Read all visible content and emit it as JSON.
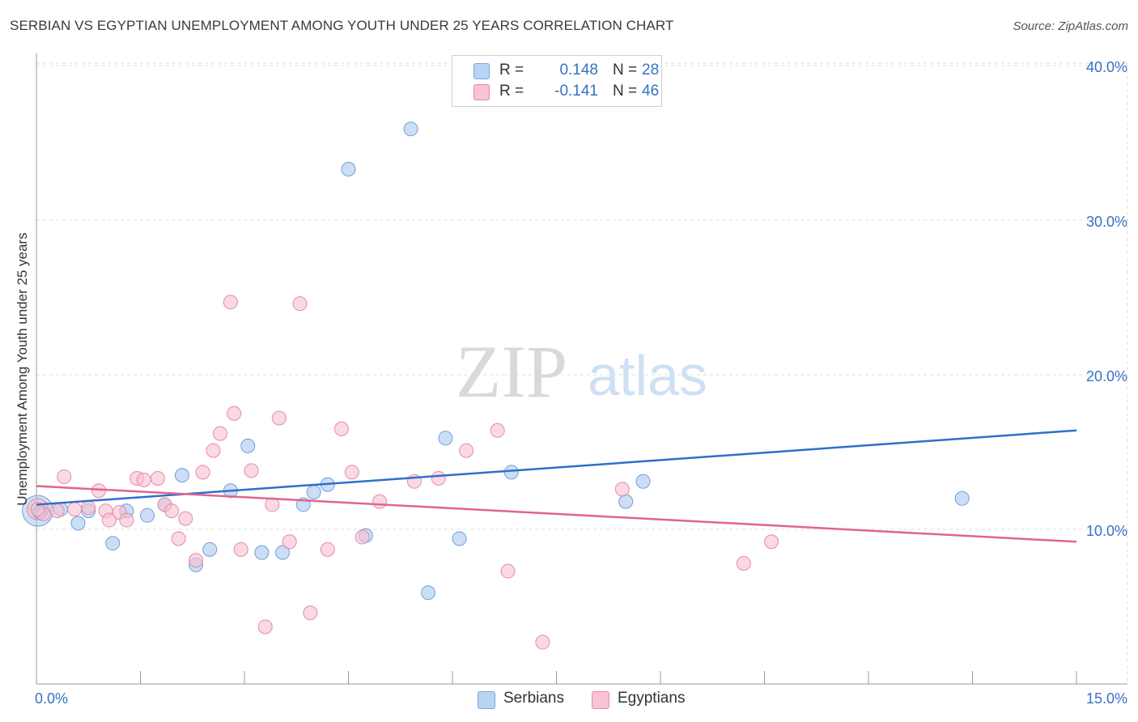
{
  "header": {
    "title": "SERBIAN VS EGYPTIAN UNEMPLOYMENT AMONG YOUTH UNDER 25 YEARS CORRELATION CHART",
    "source": "Source: ZipAtlas.com"
  },
  "watermark": {
    "zip": "ZIP",
    "atlas": "atlas"
  },
  "legend": {
    "r_label": "R =",
    "n_label": "N =",
    "rows": [
      {
        "name": "Serbians",
        "r": "0.148",
        "n": "28",
        "fill": "#b9d3f3",
        "stroke": "#7aa7df"
      },
      {
        "name": "Egyptians",
        "r": "-0.141",
        "n": "46",
        "fill": "#f8c3d3",
        "stroke": "#e98aa8"
      }
    ]
  },
  "colors": {
    "serbian_point": "#a9c8ef",
    "serbian_stroke": "#6f9fdc",
    "serbian_line": "#2f6fcd",
    "egyptian_point": "#f6bfd0",
    "egyptian_stroke": "#e58aa8",
    "egyptian_line": "#e2648e",
    "tick_label": "#3572c6",
    "grid": "#dddddd"
  },
  "chart_data": {
    "type": "scatter",
    "title": "SERBIAN VS EGYPTIAN UNEMPLOYMENT AMONG YOUTH UNDER 25 YEARS CORRELATION CHART",
    "xlabel": "",
    "ylabel": "Unemployment Among Youth under 25 years",
    "xlim": [
      0,
      15
    ],
    "ylim": [
      0,
      40
    ],
    "x_tick_labels": [
      "0.0%",
      "15.0%"
    ],
    "y_ticks": [
      10,
      20,
      30,
      40
    ],
    "y_tick_labels": [
      "10.0%",
      "20.0%",
      "30.0%",
      "40.0%"
    ],
    "series": [
      {
        "name": "Serbians",
        "trend": [
          [
            0.0,
            11.6
          ],
          [
            15.0,
            16.4
          ]
        ],
        "points": [
          [
            0.05,
            11.1
          ],
          [
            0.6,
            10.4
          ],
          [
            0.75,
            11.2
          ],
          [
            1.1,
            9.1
          ],
          [
            1.3,
            11.2
          ],
          [
            1.6,
            10.9
          ],
          [
            1.85,
            11.6
          ],
          [
            2.1,
            13.5
          ],
          [
            2.3,
            7.7
          ],
          [
            2.5,
            8.7
          ],
          [
            2.8,
            12.5
          ],
          [
            3.05,
            15.4
          ],
          [
            3.25,
            8.5
          ],
          [
            3.55,
            8.5
          ],
          [
            3.85,
            11.6
          ],
          [
            4.0,
            12.4
          ],
          [
            4.2,
            12.9
          ],
          [
            4.5,
            33.3
          ],
          [
            4.75,
            9.6
          ],
          [
            5.4,
            35.9
          ],
          [
            5.65,
            5.9
          ],
          [
            5.9,
            15.9
          ],
          [
            6.1,
            9.4
          ],
          [
            6.85,
            13.7
          ],
          [
            8.5,
            11.8
          ],
          [
            8.75,
            13.1
          ],
          [
            13.35,
            12.0
          ],
          [
            0.35,
            11.3
          ]
        ]
      },
      {
        "name": "Egyptians",
        "trend": [
          [
            0.0,
            12.8
          ],
          [
            15.0,
            9.2
          ]
        ],
        "points": [
          [
            0.1,
            11.0
          ],
          [
            0.3,
            11.2
          ],
          [
            0.4,
            13.4
          ],
          [
            0.55,
            11.3
          ],
          [
            0.75,
            11.4
          ],
          [
            0.9,
            12.5
          ],
          [
            1.0,
            11.2
          ],
          [
            1.05,
            10.6
          ],
          [
            1.2,
            11.1
          ],
          [
            1.3,
            10.6
          ],
          [
            1.45,
            13.3
          ],
          [
            1.55,
            13.2
          ],
          [
            1.75,
            13.3
          ],
          [
            1.85,
            11.6
          ],
          [
            1.95,
            11.2
          ],
          [
            2.05,
            9.4
          ],
          [
            2.15,
            10.7
          ],
          [
            2.3,
            8.0
          ],
          [
            2.4,
            13.7
          ],
          [
            2.55,
            15.1
          ],
          [
            2.65,
            16.2
          ],
          [
            2.8,
            24.7
          ],
          [
            2.85,
            17.5
          ],
          [
            2.95,
            8.7
          ],
          [
            3.1,
            13.8
          ],
          [
            3.3,
            3.7
          ],
          [
            3.4,
            11.6
          ],
          [
            3.5,
            17.2
          ],
          [
            3.65,
            9.2
          ],
          [
            3.8,
            24.6
          ],
          [
            3.95,
            4.6
          ],
          [
            4.2,
            8.7
          ],
          [
            4.4,
            16.5
          ],
          [
            4.55,
            13.7
          ],
          [
            4.7,
            9.5
          ],
          [
            4.95,
            11.8
          ],
          [
            5.45,
            13.1
          ],
          [
            5.8,
            13.3
          ],
          [
            6.2,
            15.1
          ],
          [
            6.65,
            16.4
          ],
          [
            6.8,
            7.3
          ],
          [
            7.3,
            2.7
          ],
          [
            8.45,
            12.6
          ],
          [
            10.2,
            7.8
          ],
          [
            10.6,
            9.2
          ],
          [
            0.02,
            11.3
          ]
        ]
      }
    ]
  }
}
